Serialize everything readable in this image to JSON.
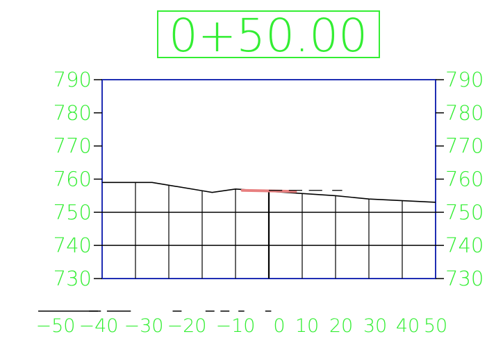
{
  "station_label": "0+50.00",
  "colors": {
    "text": "#33ee33",
    "frame": "#1f2db3",
    "ground": "#000000",
    "design": "#e88080"
  },
  "chart_data": {
    "type": "line",
    "xlim": [
      -50,
      50
    ],
    "ylim": [
      730,
      790
    ],
    "y_ticks": [
      790,
      780,
      770,
      760,
      750,
      740,
      730
    ],
    "x_ticks": [
      -50,
      -40,
      -30,
      -20,
      -10,
      0,
      10,
      20,
      30,
      40,
      50
    ],
    "y_tick_labels": [
      "790",
      "780",
      "770",
      "760",
      "750",
      "740",
      "730"
    ],
    "x_tick_labels": [
      "−50",
      "−40",
      "−30",
      "−20",
      "−10",
      "0",
      "10",
      "20",
      "30",
      "40",
      "50"
    ],
    "grid": true,
    "series": [
      {
        "points": [
          {
            "x": -50,
            "y": 759
          },
          {
            "x": -35,
            "y": 759
          },
          {
            "x": -20,
            "y": 756.5
          },
          {
            "x": -17,
            "y": 756
          },
          {
            "x": -10,
            "y": 757
          },
          {
            "x": 20,
            "y": 755
          },
          {
            "x": 30,
            "y": 754
          },
          {
            "x": 50,
            "y": 753
          }
        ]
      },
      {
        "points": [
          {
            "x": -8,
            "y": 756.6
          },
          {
            "x": 8,
            "y": 756.3
          }
        ]
      }
    ],
    "vertical_lines_x": [
      -40,
      -30,
      -20,
      -10,
      0,
      10,
      20,
      30,
      40
    ],
    "dashed_offset_x": [
      0,
      10,
      20
    ]
  }
}
